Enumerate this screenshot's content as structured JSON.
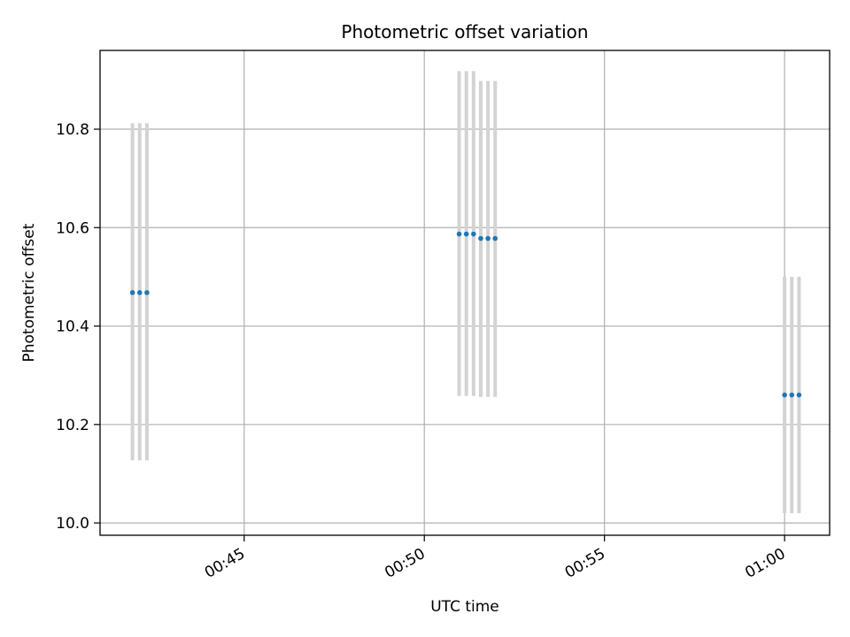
{
  "chart_data": {
    "type": "scatter",
    "title": "Photometric offset variation",
    "xlabel": "UTC time",
    "ylabel": "Photometric offset",
    "x_axis_type": "time",
    "xlim": [
      "00:41:00",
      "01:01:15"
    ],
    "ylim": [
      9.975,
      10.96
    ],
    "x_ticks": [
      "00:45",
      "00:50",
      "00:55",
      "01:00"
    ],
    "y_ticks": [
      "10.0",
      "10.2",
      "10.4",
      "10.6",
      "10.8"
    ],
    "grid": true,
    "marker_color": "#1f77b4",
    "errorbar_color": "#d3d3d3",
    "points": [
      {
        "x": "00:41:54",
        "y": 10.468,
        "yerr_low": 10.127,
        "yerr_high": 10.812
      },
      {
        "x": "00:42:06",
        "y": 10.468,
        "yerr_low": 10.127,
        "yerr_high": 10.812
      },
      {
        "x": "00:42:18",
        "y": 10.468,
        "yerr_low": 10.127,
        "yerr_high": 10.812
      },
      {
        "x": "00:50:58",
        "y": 10.587,
        "yerr_low": 10.258,
        "yerr_high": 10.918
      },
      {
        "x": "00:51:10",
        "y": 10.587,
        "yerr_low": 10.258,
        "yerr_high": 10.918
      },
      {
        "x": "00:51:22",
        "y": 10.587,
        "yerr_low": 10.258,
        "yerr_high": 10.918
      },
      {
        "x": "00:51:34",
        "y": 10.578,
        "yerr_low": 10.256,
        "yerr_high": 10.898
      },
      {
        "x": "00:51:46",
        "y": 10.578,
        "yerr_low": 10.256,
        "yerr_high": 10.898
      },
      {
        "x": "00:51:58",
        "y": 10.578,
        "yerr_low": 10.256,
        "yerr_high": 10.898
      },
      {
        "x": "01:00:00",
        "y": 10.26,
        "yerr_low": 10.02,
        "yerr_high": 10.5
      },
      {
        "x": "01:00:12",
        "y": 10.26,
        "yerr_low": 10.02,
        "yerr_high": 10.5
      },
      {
        "x": "01:00:24",
        "y": 10.26,
        "yerr_low": 10.02,
        "yerr_high": 10.5
      }
    ]
  }
}
